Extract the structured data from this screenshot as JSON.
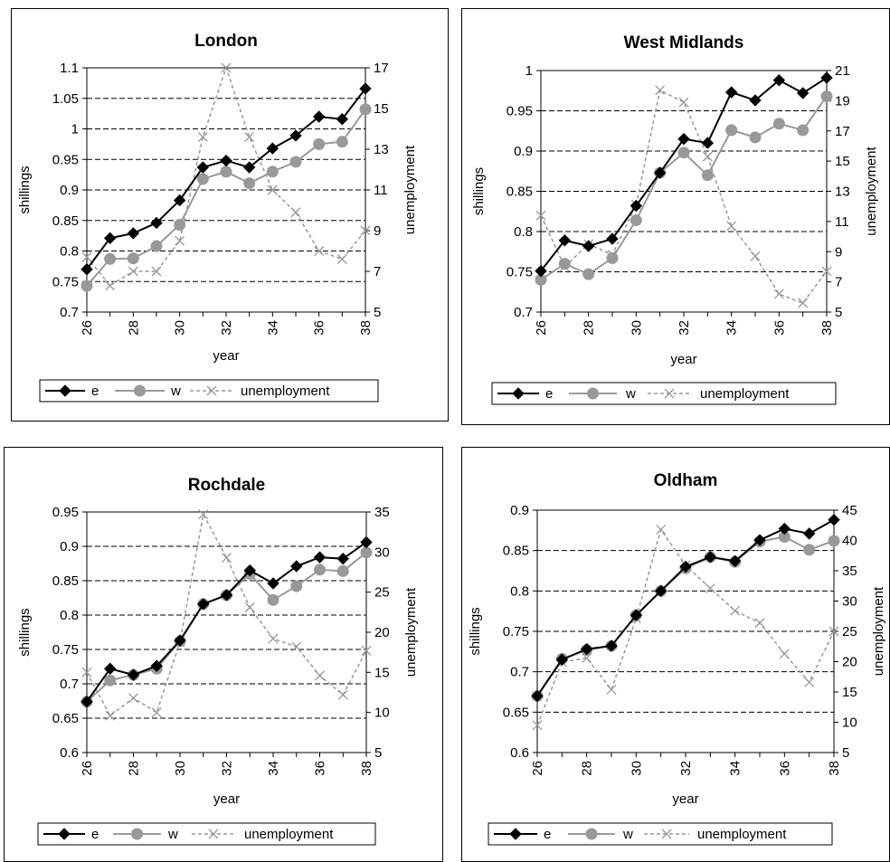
{
  "chart_data": [
    {
      "type": "line",
      "title": "London",
      "xlabel": "year",
      "ylabel": "shillings",
      "y2label": "unemployment",
      "x": [
        26,
        27,
        28,
        29,
        30,
        31,
        32,
        33,
        34,
        35,
        36,
        37,
        38
      ],
      "xticks": [
        26,
        28,
        30,
        32,
        34,
        36,
        38
      ],
      "ylim": [
        0.7,
        1.1
      ],
      "yticks": [
        "0.7",
        "0.75",
        "0.8",
        "0.85",
        "0.9",
        "0.95",
        "1",
        "1.05",
        "1.1"
      ],
      "y2lim": [
        5,
        17
      ],
      "y2ticks": [
        "5",
        "7",
        "9",
        "11",
        "13",
        "15",
        "17"
      ],
      "grid": "dashed horizontal at left-axis ticks",
      "legend": "bottom",
      "series": [
        {
          "name": "e",
          "axis": "left",
          "color": "#000000",
          "marker": "diamond",
          "dash": "solid",
          "values": [
            0.77,
            0.821,
            0.829,
            0.846,
            0.883,
            0.937,
            0.948,
            0.937,
            0.968,
            0.989,
            1.02,
            1.016,
            1.066
          ]
        },
        {
          "name": "w",
          "axis": "left",
          "color": "#999999",
          "marker": "circle",
          "dash": "solid",
          "values": [
            0.743,
            0.787,
            0.788,
            0.808,
            0.843,
            0.918,
            0.93,
            0.911,
            0.93,
            0.946,
            0.975,
            0.979,
            1.032
          ]
        },
        {
          "name": "unemployment",
          "axis": "right",
          "color": "#999999",
          "marker": "x",
          "dash": "dashed",
          "values": [
            7.7,
            6.3,
            7,
            7,
            8.5,
            13.6,
            17,
            13.6,
            11,
            9.9,
            8,
            7.6,
            9
          ]
        }
      ]
    },
    {
      "type": "line",
      "title": "West Midlands",
      "xlabel": "year",
      "ylabel": "shillings",
      "y2label": "unemployment",
      "x": [
        26,
        27,
        28,
        29,
        30,
        31,
        32,
        33,
        34,
        35,
        36,
        37,
        38
      ],
      "xticks": [
        26,
        28,
        30,
        32,
        34,
        36,
        38
      ],
      "ylim": [
        0.7,
        1.0
      ],
      "yticks": [
        "0.7",
        "0.75",
        "0.8",
        "0.85",
        "0.9",
        "0.95",
        "1"
      ],
      "y2lim": [
        5,
        21
      ],
      "y2ticks": [
        "5",
        "7",
        "9",
        "11",
        "13",
        "15",
        "17",
        "19",
        "21"
      ],
      "grid": "dashed horizontal at left-axis ticks",
      "legend": "bottom",
      "series": [
        {
          "name": "e",
          "axis": "left",
          "color": "#000000",
          "marker": "diamond",
          "dash": "solid",
          "values": [
            0.751,
            0.789,
            0.782,
            0.791,
            0.832,
            0.873,
            0.915,
            0.91,
            0.973,
            0.963,
            0.988,
            0.972,
            0.991
          ]
        },
        {
          "name": "w",
          "axis": "left",
          "color": "#999999",
          "marker": "circle",
          "dash": "solid",
          "values": [
            0.74,
            0.76,
            0.747,
            0.767,
            0.814,
            0.873,
            0.898,
            0.87,
            0.926,
            0.917,
            0.934,
            0.926,
            0.968
          ]
        },
        {
          "name": "unemployment",
          "axis": "right",
          "color": "#999999",
          "marker": "x",
          "dash": "dashed",
          "values": [
            11.4,
            8,
            9.5,
            8.8,
            12.1,
            19.7,
            18.9,
            15.3,
            10.7,
            8.7,
            6.2,
            5.6,
            7.7
          ]
        }
      ]
    },
    {
      "type": "line",
      "title": "Rochdale",
      "xlabel": "year",
      "ylabel": "shillings",
      "y2label": "unemployment",
      "x": [
        26,
        27,
        28,
        29,
        30,
        31,
        32,
        33,
        34,
        35,
        36,
        37,
        38
      ],
      "xticks": [
        26,
        28,
        30,
        32,
        34,
        36,
        38
      ],
      "ylim": [
        0.6,
        0.95
      ],
      "yticks": [
        "0.6",
        "0.65",
        "0.7",
        "0.75",
        "0.8",
        "0.85",
        "0.9",
        "0.95"
      ],
      "y2lim": [
        5,
        35
      ],
      "y2ticks": [
        "5",
        "10",
        "15",
        "20",
        "25",
        "30",
        "35"
      ],
      "grid": "dashed horizontal at left-axis ticks",
      "legend": "bottom",
      "series": [
        {
          "name": "e",
          "axis": "left",
          "color": "#000000",
          "marker": "diamond",
          "dash": "solid",
          "values": [
            0.674,
            0.722,
            0.713,
            0.726,
            0.763,
            0.816,
            0.829,
            0.865,
            0.846,
            0.871,
            0.884,
            0.882,
            0.906
          ]
        },
        {
          "name": "w",
          "axis": "left",
          "color": "#999999",
          "marker": "circle",
          "dash": "solid",
          "values": [
            0.674,
            0.705,
            0.713,
            0.722,
            0.762,
            0.816,
            0.829,
            0.86,
            0.822,
            0.842,
            0.866,
            0.864,
            0.891
          ]
        },
        {
          "name": "unemployment",
          "axis": "right",
          "color": "#999999",
          "marker": "x",
          "dash": "dashed",
          "values": [
            15,
            9.6,
            11.8,
            10,
            18.8,
            34.7,
            29.3,
            23.1,
            19.2,
            18.2,
            14.6,
            12.2,
            17.7
          ]
        }
      ]
    },
    {
      "type": "line",
      "title": "Oldham",
      "xlabel": "year",
      "ylabel": "shillings",
      "y2label": "unemployment",
      "x": [
        26,
        27,
        28,
        29,
        30,
        31,
        32,
        33,
        34,
        35,
        36,
        37,
        38
      ],
      "xticks": [
        26,
        28,
        30,
        32,
        34,
        36,
        38
      ],
      "ylim": [
        0.6,
        0.9
      ],
      "yticks": [
        "0.6",
        "0.65",
        "0.7",
        "0.75",
        "0.8",
        "0.85",
        "0.9"
      ],
      "y2lim": [
        5,
        45
      ],
      "y2ticks": [
        "5",
        "10",
        "15",
        "20",
        "25",
        "30",
        "35",
        "40",
        "45"
      ],
      "grid": "dashed horizontal at left-axis ticks",
      "legend": "bottom",
      "series": [
        {
          "name": "e",
          "axis": "left",
          "color": "#000000",
          "marker": "diamond",
          "dash": "solid",
          "values": [
            0.67,
            0.715,
            0.728,
            0.732,
            0.77,
            0.8,
            0.83,
            0.842,
            0.837,
            0.863,
            0.877,
            0.871,
            0.888
          ]
        },
        {
          "name": "w",
          "axis": "left",
          "color": "#999999",
          "marker": "circle",
          "dash": "solid",
          "values": [
            0.67,
            0.716,
            0.727,
            0.732,
            0.77,
            0.8,
            0.828,
            0.842,
            0.836,
            0.861,
            0.867,
            0.851,
            0.862
          ]
        },
        {
          "name": "unemployment",
          "axis": "right",
          "color": "#999999",
          "marker": "x",
          "dash": "dashed",
          "values": [
            9.5,
            19.9,
            20.6,
            15.4,
            27.1,
            41.8,
            35.9,
            32.1,
            28.4,
            26.4,
            21.3,
            16.6,
            25
          ]
        }
      ]
    }
  ]
}
